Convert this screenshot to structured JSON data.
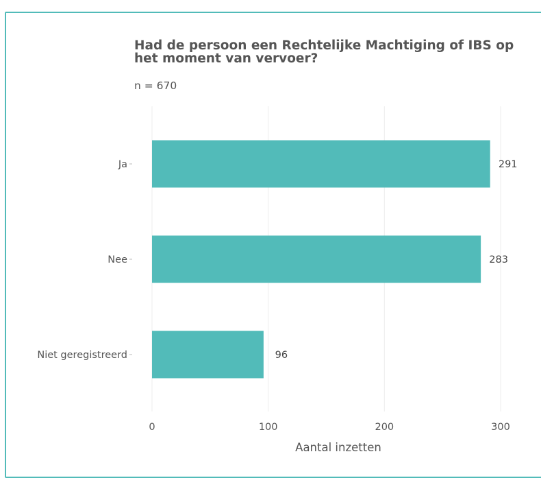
{
  "chart_data": {
    "type": "bar",
    "orientation": "horizontal",
    "title": "Had de persoon een Rechtelijke Machtiging of IBS op het moment van vervoer?",
    "subtitle": "n = 670",
    "categories": [
      "Ja",
      "Nee",
      "Niet geregistreerd"
    ],
    "values": [
      291,
      283,
      96
    ],
    "xlabel": "Aantal inzetten",
    "ylabel": "",
    "xlim": [
      0,
      340
    ],
    "xticks": [
      0,
      100,
      200,
      300
    ],
    "grid": "vertical",
    "legend": "none",
    "bar_color": "#52bbb9",
    "data_labels": true
  }
}
